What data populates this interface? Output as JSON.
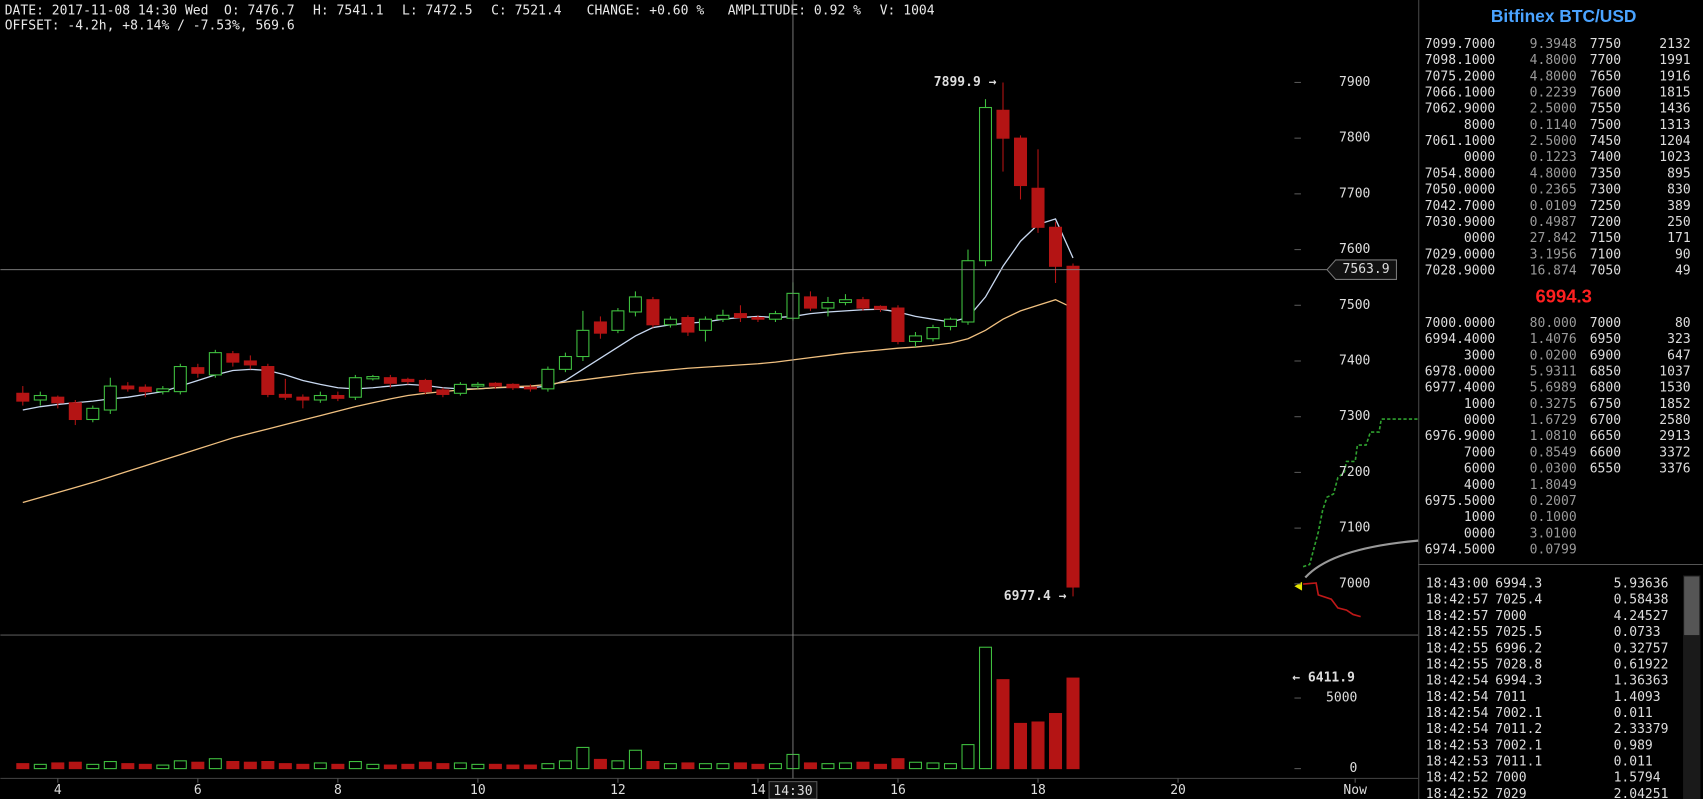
{
  "header": {
    "line1": [
      "DATE: 2017-11-08 14:30 Wed",
      "O: 7476.7",
      "H: 7541.1",
      "L: 7472.5",
      "C: 7521.4",
      "CHANGE: +0.60 %",
      "AMPLITUDE: 0.92 %",
      "V: 1004"
    ],
    "line2": "OFFSET: -4.2h, +8.14% / -7.53%, 569.6"
  },
  "chart_data": {
    "type": "candlestick",
    "colors": {
      "up": "#3fbf3f",
      "down": "#b41414",
      "axis_text": "#b4b4b4",
      "annotation": "#bcbcbc",
      "volume_annotation": "#e6e600"
    },
    "x": [
      3.5,
      3.75,
      4,
      4.25,
      4.5,
      4.75,
      5,
      5.25,
      5.5,
      5.75,
      6,
      6.25,
      6.5,
      6.75,
      7,
      7.25,
      7.5,
      7.75,
      8,
      8.25,
      8.5,
      8.75,
      9,
      9.25,
      9.5,
      9.75,
      10,
      10.25,
      10.5,
      10.75,
      11,
      11.25,
      11.5,
      11.75,
      12,
      12.25,
      12.5,
      12.75,
      13,
      13.25,
      13.5,
      13.75,
      14,
      14.25,
      14.5,
      14.75,
      15,
      15.25,
      15.5,
      15.75,
      16,
      16.25,
      16.5,
      16.75,
      17,
      17.25,
      17.5,
      17.75,
      18,
      18.25,
      18.5
    ],
    "open": [
      7342,
      7330,
      7335,
      7325,
      7295,
      7312,
      7355,
      7353,
      7345,
      7345,
      7388,
      7375,
      7413,
      7400,
      7390,
      7340,
      7335,
      7330,
      7338,
      7335,
      7368,
      7370,
      7367,
      7365,
      7348,
      7342,
      7355,
      7360,
      7358,
      7353,
      7350,
      7385,
      7408,
      7470,
      7455,
      7488,
      7510,
      7465,
      7478,
      7455,
      7475,
      7485,
      7478,
      7475,
      7476.7,
      7515,
      7495,
      7505,
      7510,
      7498,
      7495,
      7435,
      7440,
      7462,
      7470,
      7580,
      7850,
      7800,
      7710,
      7640,
      7570
    ],
    "high": [
      7355,
      7345,
      7338,
      7330,
      7320,
      7370,
      7362,
      7358,
      7355,
      7395,
      7395,
      7420,
      7418,
      7410,
      7395,
      7368,
      7340,
      7345,
      7345,
      7375,
      7375,
      7375,
      7370,
      7368,
      7352,
      7362,
      7362,
      7362,
      7360,
      7358,
      7390,
      7415,
      7490,
      7480,
      7495,
      7525,
      7515,
      7480,
      7482,
      7480,
      7492,
      7500,
      7482,
      7490,
      7541.1,
      7525,
      7515,
      7520,
      7515,
      7500,
      7500,
      7452,
      7465,
      7478,
      7600,
      7870,
      7899.9,
      7805,
      7780,
      7650,
      7575
    ],
    "low": [
      7320,
      7320,
      7315,
      7285,
      7290,
      7305,
      7345,
      7335,
      7340,
      7340,
      7370,
      7370,
      7390,
      7385,
      7335,
      7330,
      7315,
      7325,
      7328,
      7330,
      7365,
      7352,
      7358,
      7340,
      7335,
      7338,
      7350,
      7350,
      7348,
      7345,
      7345,
      7380,
      7400,
      7440,
      7450,
      7480,
      7460,
      7460,
      7445,
      7435,
      7470,
      7470,
      7470,
      7470,
      7472.5,
      7490,
      7480,
      7500,
      7490,
      7488,
      7430,
      7425,
      7435,
      7455,
      7465,
      7570,
      7740,
      7690,
      7630,
      7540,
      6977.4
    ],
    "close": [
      7328,
      7338,
      7325,
      7295,
      7315,
      7355,
      7350,
      7345,
      7350,
      7390,
      7378,
      7415,
      7398,
      7393,
      7340,
      7335,
      7330,
      7338,
      7333,
      7370,
      7372,
      7360,
      7363,
      7345,
      7340,
      7358,
      7358,
      7355,
      7352,
      7350,
      7385,
      7408,
      7455,
      7450,
      7490,
      7515,
      7465,
      7475,
      7452,
      7475,
      7482,
      7478,
      7475,
      7485,
      7521.4,
      7495,
      7505,
      7510,
      7495,
      7493,
      7435,
      7445,
      7460,
      7475,
      7580,
      7855,
      7800,
      7715,
      7640,
      7570,
      6994.3
    ],
    "volume": [
      350,
      300,
      400,
      450,
      300,
      500,
      350,
      300,
      250,
      550,
      450,
      700,
      500,
      450,
      500,
      350,
      300,
      400,
      300,
      500,
      300,
      250,
      300,
      450,
      350,
      400,
      300,
      300,
      250,
      250,
      350,
      550,
      1500,
      650,
      550,
      1300,
      500,
      350,
      400,
      350,
      350,
      400,
      300,
      350,
      1004,
      400,
      350,
      400,
      450,
      300,
      700,
      450,
      400,
      350,
      1700,
      8600,
      6300,
      3200,
      3300,
      3900,
      6411.9
    ],
    "ma": [
      {
        "color": "#c8d8f0",
        "values": [
          7312,
          7318,
          7322,
          7325,
          7328,
          7332,
          7335,
          7340,
          7345,
          7355,
          7365,
          7375,
          7383,
          7385,
          7383,
          7375,
          7365,
          7358,
          7352,
          7350,
          7352,
          7355,
          7358,
          7356,
          7352,
          7350,
          7350,
          7352,
          7353,
          7352,
          7355,
          7365,
          7385,
          7405,
          7425,
          7445,
          7460,
          7465,
          7468,
          7470,
          7475,
          7478,
          7480,
          7478,
          7480,
          7485,
          7488,
          7490,
          7492,
          7493,
          7488,
          7480,
          7475,
          7470,
          7478,
          7515,
          7570,
          7615,
          7645,
          7655,
          7585
        ]
      },
      {
        "color": "#f0c080",
        "values": [
          7146,
          7155,
          7164,
          7173,
          7182,
          7192,
          7202,
          7212,
          7222,
          7232,
          7242,
          7252,
          7262,
          7270,
          7278,
          7286,
          7294,
          7302,
          7310,
          7318,
          7325,
          7332,
          7338,
          7342,
          7345,
          7348,
          7350,
          7352,
          7354,
          7355,
          7358,
          7362,
          7366,
          7370,
          7374,
          7378,
          7381,
          7384,
          7387,
          7389,
          7391,
          7393,
          7395,
          7398,
          7402,
          7406,
          7410,
          7414,
          7417,
          7420,
          7423,
          7425,
          7428,
          7432,
          7440,
          7455,
          7475,
          7490,
          7500,
          7510,
          7495
        ]
      }
    ],
    "xlim": [
      3.18,
      23.43
    ],
    "xticks": [
      4,
      6,
      8,
      10,
      12,
      14,
      16,
      18,
      20,
      {
        "value": 22.53,
        "label": "Now"
      }
    ],
    "ylim": [
      6908,
      8048
    ],
    "yticks": [
      7000,
      7100,
      7200,
      7300,
      7400,
      7500,
      7600,
      7700,
      7800,
      7900
    ],
    "y2lim": [
      0,
      9000
    ],
    "y2ticks": [
      0,
      5000
    ],
    "crosshair": {
      "x": {
        "value": 14.5,
        "label": "14:30"
      },
      "y": 7563.9
    },
    "annotations": [
      {
        "text": "7899.9 →",
        "x": 17.5,
        "y": 7899.9
      },
      {
        "text": "6977.4 →",
        "x": 18.5,
        "y": 6977.4
      }
    ],
    "volume_annotation": {
      "text": "← 6411.9",
      "y2": 6411.9
    }
  },
  "orderbook": {
    "title": "Bitfinex BTC/USD",
    "asks": [
      [
        "7099.7000",
        "9.3948",
        "7750",
        "2132"
      ],
      [
        "7098.1000",
        "4.8000",
        "7700",
        "1991"
      ],
      [
        "7075.2000",
        "4.8000",
        "7650",
        "1916"
      ],
      [
        "7066.1000",
        "0.2239",
        "7600",
        "1815"
      ],
      [
        "7062.9000",
        "2.5000",
        "7550",
        "1436"
      ],
      [
        "8000",
        "0.1140",
        "7500",
        "1313"
      ],
      [
        "7061.1000",
        "2.5000",
        "7450",
        "1204"
      ],
      [
        "0000",
        "0.1223",
        "7400",
        "1023"
      ],
      [
        "7054.8000",
        "4.8000",
        "7350",
        "895"
      ],
      [
        "7050.0000",
        "0.2365",
        "7300",
        "830"
      ],
      [
        "7042.7000",
        "0.0109",
        "7250",
        "389"
      ],
      [
        "7030.9000",
        "0.4987",
        "7200",
        "250"
      ],
      [
        "0000",
        "27.842",
        "7150",
        "171"
      ],
      [
        "7029.0000",
        "3.1956",
        "7100",
        "90"
      ],
      [
        "7028.9000",
        "16.874",
        "7050",
        "49"
      ]
    ],
    "last": "6994.3",
    "bids": [
      [
        "7000.0000",
        "80.000",
        "7000",
        "80"
      ],
      [
        "6994.4000",
        "1.4076",
        "6950",
        "323"
      ],
      [
        "3000",
        "0.0200",
        "6900",
        "647"
      ],
      [
        "6978.0000",
        "5.9311",
        "6850",
        "1037"
      ],
      [
        "6977.4000",
        "5.6989",
        "6800",
        "1530"
      ],
      [
        "1000",
        "0.3275",
        "6750",
        "1852"
      ],
      [
        "0000",
        "1.6729",
        "6700",
        "2580"
      ],
      [
        "6976.9000",
        "1.0810",
        "6650",
        "2913"
      ],
      [
        "7000",
        "0.8549",
        "6600",
        "3372"
      ],
      [
        "6000",
        "0.0300",
        "6550",
        "3376"
      ],
      [
        "4000",
        "1.8049"
      ],
      [
        "6975.5000",
        "0.2007"
      ],
      [
        "1000",
        "0.1000"
      ],
      [
        "0000",
        "3.0100"
      ],
      [
        "6974.5000",
        "0.0799"
      ]
    ]
  },
  "trades": [
    {
      "time": "18:43:00",
      "price": "6994.3",
      "amount": "5.93636",
      "color": "#ff5a5a"
    },
    {
      "time": "18:42:57",
      "price": "7025.4",
      "amount": "0.58438",
      "color": "#5ae65a"
    },
    {
      "time": "18:42:57",
      "price": "7000",
      "amount": "4.24527",
      "color": "#ff5a5a"
    },
    {
      "time": "18:42:55",
      "price": "7025.5",
      "amount": "0.0733",
      "color": "#5ae65a"
    },
    {
      "time": "18:42:55",
      "price": "6996.2",
      "amount": "0.32757",
      "color": "#ff5a5a"
    },
    {
      "time": "18:42:55",
      "price": "7028.8",
      "amount": "0.61922",
      "color": "#5ae65a"
    },
    {
      "time": "18:42:54",
      "price": "6994.3",
      "amount": "1.36363",
      "color": "#ff5a5a"
    },
    {
      "time": "18:42:54",
      "price": "7011",
      "amount": "1.4093",
      "color": "#5ae65a"
    },
    {
      "time": "18:42:54",
      "price": "7002.1",
      "amount": "0.011",
      "color": "#ff5a5a"
    },
    {
      "time": "18:42:54",
      "price": "7011.2",
      "amount": "2.33379",
      "color": "#5ae65a"
    },
    {
      "time": "18:42:53",
      "price": "7002.1",
      "amount": "0.989",
      "color": "#ff5a5a"
    },
    {
      "time": "18:42:53",
      "price": "7011.1",
      "amount": "0.011",
      "color": "#5ae65a"
    },
    {
      "time": "18:42:52",
      "price": "7000",
      "amount": "1.5794",
      "color": "#ff5a5a"
    },
    {
      "time": "18:42:52",
      "price": "7029",
      "amount": "2.04251",
      "color": "#5ae65a"
    }
  ]
}
